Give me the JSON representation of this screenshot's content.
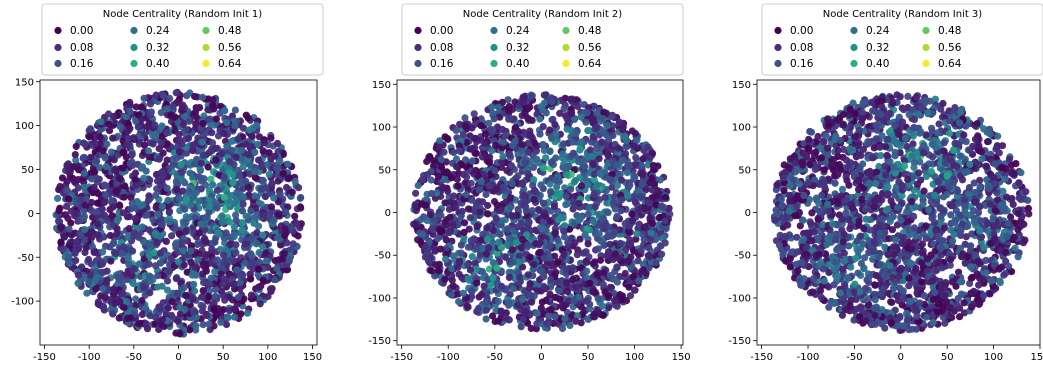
{
  "chart_data": [
    {
      "type": "scatter",
      "title": "",
      "legend": {
        "title": "Node Centrality (Random Init 1)",
        "entries": [
          "0.00",
          "0.08",
          "0.16",
          "0.24",
          "0.32",
          "0.40",
          "0.48",
          "0.56",
          "0.64"
        ],
        "colors": [
          "#440154",
          "#472d7b",
          "#3b528b",
          "#2c728e",
          "#21918c",
          "#28ae80",
          "#5ec962",
          "#addc30",
          "#fde725"
        ],
        "placement": "above-plot"
      },
      "xlim": [
        -155,
        155
      ],
      "ylim": [
        -150,
        152
      ],
      "xticks": [
        -150,
        -100,
        -50,
        0,
        50,
        100,
        150
      ],
      "yticks": [
        -100,
        -50,
        0,
        50,
        100,
        150
      ],
      "grid": false,
      "point_count": 2200,
      "cloud_radius": 138,
      "value_range": [
        0.0,
        0.64
      ]
    },
    {
      "type": "scatter",
      "title": "",
      "legend": {
        "title": "Node Centrality (Random Init 2)",
        "entries": [
          "0.00",
          "0.08",
          "0.16",
          "0.24",
          "0.32",
          "0.40",
          "0.48",
          "0.56",
          "0.64"
        ],
        "colors": [
          "#440154",
          "#472d7b",
          "#3b528b",
          "#2c728e",
          "#21918c",
          "#28ae80",
          "#5ec962",
          "#addc30",
          "#fde725"
        ],
        "placement": "above-plot"
      },
      "xlim": [
        -155,
        152
      ],
      "ylim": [
        -155,
        155
      ],
      "xticks": [
        -150,
        -100,
        -50,
        0,
        50,
        100,
        150
      ],
      "yticks": [
        -150,
        -100,
        -50,
        0,
        50,
        100,
        150
      ],
      "grid": false,
      "point_count": 2200,
      "cloud_radius": 138,
      "value_range": [
        0.0,
        0.64
      ]
    },
    {
      "type": "scatter",
      "title": "",
      "legend": {
        "title": "Node Centrality (Random Init 3)",
        "entries": [
          "0.00",
          "0.08",
          "0.16",
          "0.24",
          "0.32",
          "0.40",
          "0.48",
          "0.56",
          "0.64"
        ],
        "colors": [
          "#440154",
          "#472d7b",
          "#3b528b",
          "#2c728e",
          "#21918c",
          "#28ae80",
          "#5ec962",
          "#addc30",
          "#fde725"
        ],
        "placement": "above-plot"
      },
      "xlim": [
        -155,
        150
      ],
      "ylim": [
        -155,
        155
      ],
      "xticks": [
        -150,
        -100,
        -50,
        0,
        50,
        100,
        150
      ],
      "yticks": [
        -150,
        -100,
        -50,
        0,
        50,
        100,
        150
      ],
      "grid": false,
      "point_count": 2200,
      "cloud_radius": 138,
      "value_range": [
        0.0,
        0.64
      ]
    }
  ]
}
